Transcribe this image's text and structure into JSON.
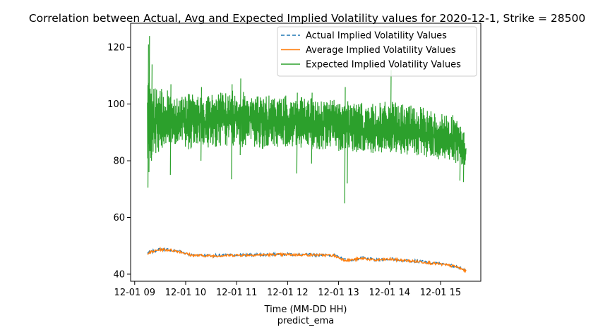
{
  "chart_data": {
    "type": "line",
    "title": "Correlation between Actual, Avg and Expected Implied Volatility values for 2020-12-1, Strike = 28500",
    "xlabel": "Time (MM-DD HH)",
    "xlabel_sub": "predict_ema",
    "ylabel": "",
    "xlim": [
      8.92,
      15.79
    ],
    "ylim": [
      37.5,
      128.5
    ],
    "x_ticks": [
      {
        "value": 9,
        "label": "12-01 09"
      },
      {
        "value": 10,
        "label": "12-01 10"
      },
      {
        "value": 11,
        "label": "12-01 11"
      },
      {
        "value": 12,
        "label": "12-01 12"
      },
      {
        "value": 13,
        "label": "12-01 13"
      },
      {
        "value": 14,
        "label": "12-01 14"
      },
      {
        "value": 15,
        "label": "12-01 15"
      }
    ],
    "y_ticks": [
      {
        "value": 40,
        "label": "40"
      },
      {
        "value": 60,
        "label": "60"
      },
      {
        "value": 80,
        "label": "80"
      },
      {
        "value": 100,
        "label": "100"
      },
      {
        "value": 120,
        "label": "120"
      }
    ],
    "grid": false,
    "legend_position": "top-right",
    "series": [
      {
        "name": "Actual Implied Volatility Values",
        "color": "#1f77b4",
        "dash": "dashed",
        "x": [
          9.25,
          9.35,
          9.5,
          9.7,
          9.9,
          10.1,
          10.5,
          11.0,
          11.5,
          12.0,
          12.5,
          12.9,
          13.1,
          13.2,
          13.5,
          13.7,
          14.0,
          14.3,
          14.6,
          15.0,
          15.3,
          15.5
        ],
        "y": [
          47.5,
          48.0,
          48.8,
          48.6,
          48.0,
          46.8,
          46.5,
          46.8,
          46.9,
          47.0,
          46.9,
          46.7,
          45.2,
          45.0,
          45.7,
          45.0,
          45.4,
          44.9,
          44.5,
          43.6,
          42.8,
          41.2
        ]
      },
      {
        "name": "Average Implied Volatility Values",
        "color": "#ff7f0e",
        "dash": "solid",
        "x": [
          9.25,
          9.35,
          9.5,
          9.7,
          9.9,
          10.1,
          10.5,
          11.0,
          11.5,
          12.0,
          12.5,
          12.9,
          13.1,
          13.2,
          13.5,
          13.7,
          14.0,
          14.3,
          14.6,
          15.0,
          15.3,
          15.5
        ],
        "y": [
          47.4,
          47.9,
          48.7,
          48.5,
          47.9,
          46.7,
          46.4,
          46.7,
          46.8,
          46.9,
          46.8,
          46.6,
          45.1,
          44.9,
          45.6,
          44.9,
          45.3,
          44.8,
          44.4,
          43.5,
          42.7,
          41.1
        ]
      },
      {
        "name": "Expected Implied Volatility Values",
        "color": "#2ca02c",
        "dash": "solid",
        "x": [
          9.25,
          9.4,
          9.6,
          9.8,
          10.0,
          10.3,
          10.6,
          11.0,
          11.5,
          12.0,
          12.5,
          12.9,
          13.1,
          13.3,
          13.6,
          14.0,
          14.3,
          14.6,
          15.0,
          15.3,
          15.5
        ],
        "y": [
          97,
          95,
          94,
          93,
          93,
          92,
          93,
          93,
          92,
          92,
          91,
          91,
          90,
          90,
          89,
          90,
          89,
          88,
          87,
          86,
          84
        ],
        "band_low": [
          80,
          82,
          84,
          85,
          84,
          84,
          85,
          85,
          84,
          85,
          84,
          84,
          83,
          83,
          82,
          83,
          82,
          81,
          80,
          79,
          78
        ],
        "band_high": [
          108,
          106,
          105,
          104,
          104,
          103,
          104,
          105,
          103,
          103,
          102,
          102,
          101,
          101,
          100,
          101,
          100,
          99,
          97,
          96,
          88
        ],
        "spikes": [
          {
            "x": 9.26,
            "low": 70.5,
            "high": 121
          },
          {
            "x": 9.28,
            "low": 76,
            "high": 124
          },
          {
            "x": 9.33,
            "low": 80,
            "high": 114
          },
          {
            "x": 9.7,
            "low": 75,
            "high": 107
          },
          {
            "x": 10.3,
            "low": 80,
            "high": 106
          },
          {
            "x": 10.9,
            "low": 73.5,
            "high": 107
          },
          {
            "x": 11.07,
            "low": 82,
            "high": 109
          },
          {
            "x": 12.18,
            "low": 75.5,
            "high": 104
          },
          {
            "x": 12.47,
            "low": 79,
            "high": 104
          },
          {
            "x": 13.12,
            "low": 65,
            "high": 106
          },
          {
            "x": 13.17,
            "low": 72,
            "high": 101
          },
          {
            "x": 14.02,
            "low": 83,
            "high": 112
          },
          {
            "x": 15.38,
            "low": 73,
            "high": 92
          },
          {
            "x": 15.45,
            "low": 72.5,
            "high": 90
          }
        ]
      }
    ]
  }
}
